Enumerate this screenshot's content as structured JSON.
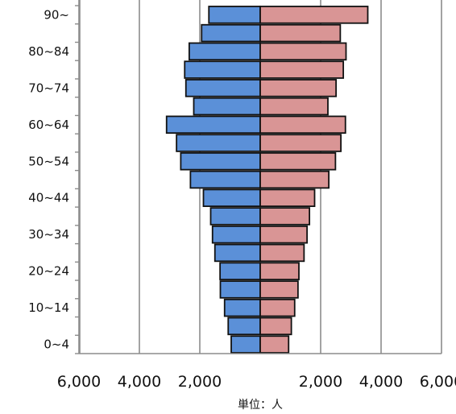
{
  "chart_data": {
    "type": "bar",
    "orientation": "horizontal-population-pyramid",
    "categories": [
      "0~4",
      "5~9",
      "10~14",
      "15~19",
      "20~24",
      "25~29",
      "30~34",
      "35~39",
      "40~44",
      "45~49",
      "50~54",
      "55~59",
      "60~64",
      "65~69",
      "70~74",
      "75~79",
      "80~84",
      "85~89",
      "90~"
    ],
    "category_tick_labels": [
      "0~4",
      "10~14",
      "20~24",
      "30~34",
      "40~44",
      "50~54",
      "60~64",
      "70~74",
      "80~84",
      "90~"
    ],
    "series": [
      {
        "side": "left",
        "color": "#5b90d8",
        "values": [
          960,
          1060,
          1180,
          1320,
          1330,
          1500,
          1580,
          1640,
          1880,
          2310,
          2630,
          2770,
          3100,
          2200,
          2460,
          2500,
          2350,
          1940,
          1700
        ]
      },
      {
        "side": "right",
        "color": "#d99595",
        "values": [
          940,
          1030,
          1140,
          1250,
          1280,
          1450,
          1550,
          1630,
          1800,
          2270,
          2490,
          2670,
          2820,
          2240,
          2510,
          2750,
          2840,
          2650,
          3560
        ]
      }
    ],
    "x_tick_labels_left": [
      "6,000",
      "4,000",
      "2,000"
    ],
    "x_tick_labels_right": [
      "2,000",
      "4,000",
      "6,000"
    ],
    "x_tick_values": [
      2000,
      4000,
      6000
    ],
    "xlim": [
      -6000,
      6000
    ],
    "unit_label": "単位：人",
    "grid": "vertical"
  }
}
